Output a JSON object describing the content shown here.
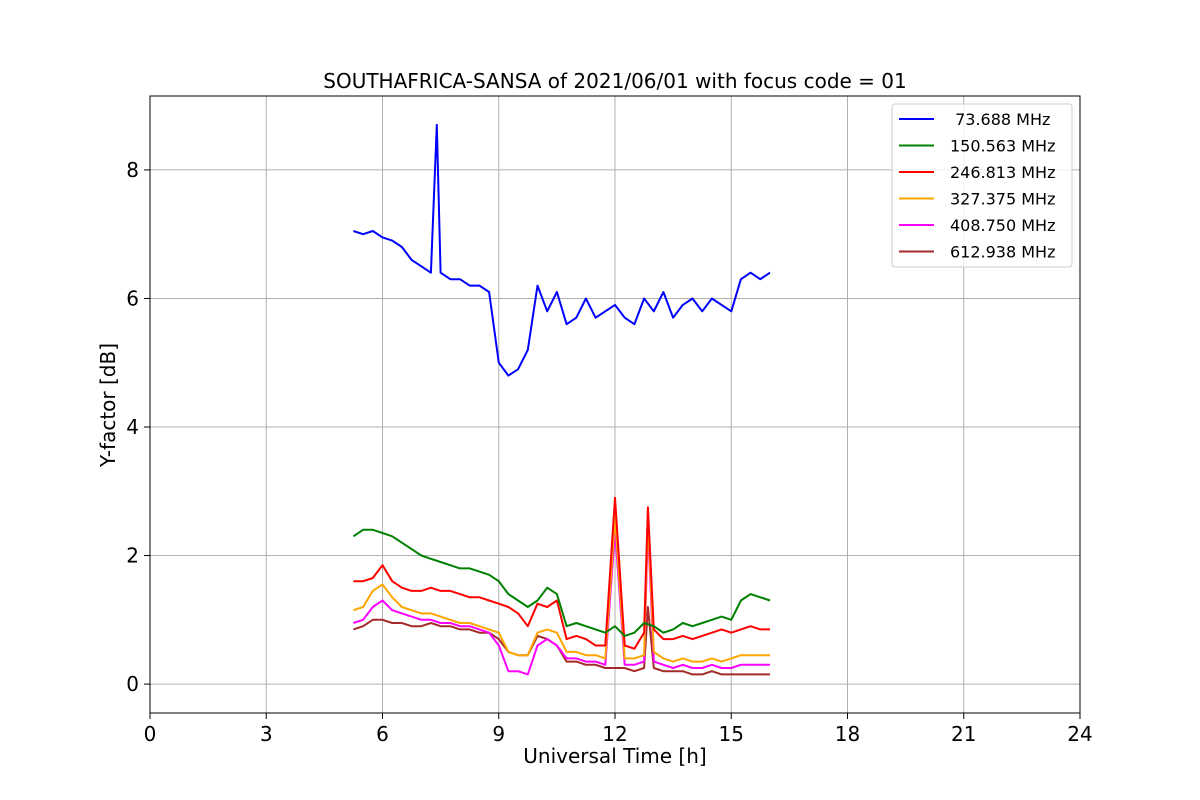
{
  "chart_data": {
    "type": "line",
    "title": "SOUTHAFRICA-SANSA of 2021/06/01 with focus code = 01",
    "xlabel": "Universal Time [h]",
    "ylabel": "Y-factor [dB]",
    "xlim": [
      0,
      24
    ],
    "ylim": [
      -0.45,
      9.15
    ],
    "xticks": [
      0,
      3,
      6,
      9,
      12,
      15,
      18,
      21,
      24
    ],
    "yticks": [
      0,
      2,
      4,
      6,
      8
    ],
    "grid": true,
    "legend_position": "top-right",
    "series": [
      {
        "name": " 73.688 MHz",
        "color": "#0000ff",
        "x": [
          5.25,
          5.5,
          5.75,
          6.0,
          6.25,
          6.5,
          6.75,
          7.0,
          7.25,
          7.4,
          7.5,
          7.75,
          8.0,
          8.25,
          8.5,
          8.75,
          9.0,
          9.25,
          9.5,
          9.75,
          10.0,
          10.25,
          10.5,
          10.75,
          11.0,
          11.25,
          11.5,
          11.75,
          12.0,
          12.25,
          12.5,
          12.75,
          13.0,
          13.25,
          13.5,
          13.75,
          14.0,
          14.25,
          14.5,
          14.75,
          15.0,
          15.25,
          15.5,
          15.75,
          16.0
        ],
        "y": [
          7.05,
          7.0,
          7.05,
          6.95,
          6.9,
          6.8,
          6.6,
          6.5,
          6.4,
          8.7,
          6.4,
          6.3,
          6.3,
          6.2,
          6.2,
          6.1,
          5.0,
          4.8,
          4.9,
          5.2,
          6.2,
          5.8,
          6.1,
          5.6,
          5.7,
          6.0,
          5.7,
          5.8,
          5.9,
          5.7,
          5.6,
          6.0,
          5.8,
          6.1,
          5.7,
          5.9,
          6.0,
          5.8,
          6.0,
          5.9,
          5.8,
          6.3,
          6.4,
          6.3,
          6.4
        ]
      },
      {
        "name": "150.563 MHz",
        "color": "#008000",
        "x": [
          5.25,
          5.5,
          5.75,
          6.0,
          6.25,
          6.5,
          6.75,
          7.0,
          7.25,
          7.5,
          7.75,
          8.0,
          8.25,
          8.5,
          8.75,
          9.0,
          9.25,
          9.5,
          9.75,
          10.0,
          10.25,
          10.5,
          10.75,
          11.0,
          11.25,
          11.5,
          11.75,
          12.0,
          12.25,
          12.5,
          12.75,
          13.0,
          13.25,
          13.5,
          13.75,
          14.0,
          14.25,
          14.5,
          14.75,
          15.0,
          15.25,
          15.5,
          15.75,
          16.0
        ],
        "y": [
          2.3,
          2.4,
          2.4,
          2.35,
          2.3,
          2.2,
          2.1,
          2.0,
          1.95,
          1.9,
          1.85,
          1.8,
          1.8,
          1.75,
          1.7,
          1.6,
          1.4,
          1.3,
          1.2,
          1.3,
          1.5,
          1.4,
          0.9,
          0.95,
          0.9,
          0.85,
          0.8,
          0.9,
          0.75,
          0.8,
          0.95,
          0.9,
          0.8,
          0.85,
          0.95,
          0.9,
          0.95,
          1.0,
          1.05,
          1.0,
          1.3,
          1.4,
          1.35,
          1.3
        ]
      },
      {
        "name": "246.813 MHz",
        "color": "#ff0000",
        "x": [
          5.25,
          5.5,
          5.75,
          6.0,
          6.25,
          6.5,
          6.75,
          7.0,
          7.25,
          7.5,
          7.75,
          8.0,
          8.25,
          8.5,
          8.75,
          9.0,
          9.25,
          9.5,
          9.75,
          10.0,
          10.25,
          10.5,
          10.75,
          11.0,
          11.25,
          11.5,
          11.75,
          12.0,
          12.25,
          12.5,
          12.75,
          12.85,
          13.0,
          13.25,
          13.5,
          13.75,
          14.0,
          14.25,
          14.5,
          14.75,
          15.0,
          15.25,
          15.5,
          15.75,
          16.0
        ],
        "y": [
          1.6,
          1.6,
          1.65,
          1.85,
          1.6,
          1.5,
          1.45,
          1.45,
          1.5,
          1.45,
          1.45,
          1.4,
          1.35,
          1.35,
          1.3,
          1.25,
          1.2,
          1.1,
          0.9,
          1.25,
          1.2,
          1.3,
          0.7,
          0.75,
          0.7,
          0.6,
          0.6,
          2.9,
          0.6,
          0.55,
          0.8,
          2.75,
          0.85,
          0.7,
          0.7,
          0.75,
          0.7,
          0.75,
          0.8,
          0.85,
          0.8,
          0.85,
          0.9,
          0.85,
          0.85
        ]
      },
      {
        "name": "327.375 MHz",
        "color": "#ffa500",
        "x": [
          5.25,
          5.5,
          5.75,
          6.0,
          6.25,
          6.5,
          6.75,
          7.0,
          7.25,
          7.5,
          7.75,
          8.0,
          8.25,
          8.5,
          8.75,
          9.0,
          9.25,
          9.5,
          9.75,
          10.0,
          10.25,
          10.5,
          10.75,
          11.0,
          11.25,
          11.5,
          11.75,
          12.0,
          12.25,
          12.5,
          12.75,
          12.85,
          13.0,
          13.25,
          13.5,
          13.75,
          14.0,
          14.25,
          14.5,
          14.75,
          15.0,
          15.25,
          15.5,
          15.75,
          16.0
        ],
        "y": [
          1.15,
          1.2,
          1.45,
          1.55,
          1.35,
          1.2,
          1.15,
          1.1,
          1.1,
          1.05,
          1.0,
          0.95,
          0.95,
          0.9,
          0.85,
          0.8,
          0.5,
          0.45,
          0.45,
          0.8,
          0.85,
          0.8,
          0.5,
          0.5,
          0.45,
          0.45,
          0.4,
          2.6,
          0.4,
          0.4,
          0.45,
          2.6,
          0.5,
          0.4,
          0.35,
          0.4,
          0.35,
          0.35,
          0.4,
          0.35,
          0.4,
          0.45,
          0.45,
          0.45,
          0.45
        ]
      },
      {
        "name": "408.750 MHz",
        "color": "#ff00ff",
        "x": [
          5.25,
          5.5,
          5.75,
          6.0,
          6.25,
          6.5,
          6.75,
          7.0,
          7.25,
          7.5,
          7.75,
          8.0,
          8.25,
          8.5,
          8.75,
          9.0,
          9.25,
          9.5,
          9.75,
          10.0,
          10.25,
          10.5,
          10.75,
          11.0,
          11.25,
          11.5,
          11.75,
          12.0,
          12.25,
          12.5,
          12.75,
          12.85,
          13.0,
          13.25,
          13.5,
          13.75,
          14.0,
          14.25,
          14.5,
          14.75,
          15.0,
          15.25,
          15.5,
          15.75,
          16.0
        ],
        "y": [
          0.95,
          1.0,
          1.2,
          1.3,
          1.15,
          1.1,
          1.05,
          1.0,
          1.0,
          0.95,
          0.95,
          0.9,
          0.9,
          0.85,
          0.8,
          0.6,
          0.2,
          0.2,
          0.15,
          0.6,
          0.7,
          0.6,
          0.4,
          0.4,
          0.35,
          0.35,
          0.3,
          2.4,
          0.3,
          0.3,
          0.35,
          2.45,
          0.35,
          0.3,
          0.25,
          0.3,
          0.25,
          0.25,
          0.3,
          0.25,
          0.25,
          0.3,
          0.3,
          0.3,
          0.3
        ]
      },
      {
        "name": "612.938 MHz",
        "color": "#a52a2a",
        "x": [
          5.25,
          5.5,
          5.75,
          6.0,
          6.25,
          6.5,
          6.75,
          7.0,
          7.25,
          7.5,
          7.75,
          8.0,
          8.25,
          8.5,
          8.75,
          9.0,
          9.25,
          9.5,
          9.75,
          10.0,
          10.25,
          10.5,
          10.75,
          11.0,
          11.25,
          11.5,
          11.75,
          12.0,
          12.25,
          12.5,
          12.75,
          12.85,
          13.0,
          13.25,
          13.5,
          13.75,
          14.0,
          14.25,
          14.5,
          14.75,
          15.0,
          15.25,
          15.5,
          15.75,
          16.0
        ],
        "y": [
          0.85,
          0.9,
          1.0,
          1.0,
          0.95,
          0.95,
          0.9,
          0.9,
          0.95,
          0.9,
          0.9,
          0.85,
          0.85,
          0.8,
          0.8,
          0.7,
          0.5,
          0.45,
          0.45,
          0.75,
          0.7,
          0.6,
          0.35,
          0.35,
          0.3,
          0.3,
          0.25,
          0.25,
          0.25,
          0.2,
          0.25,
          1.2,
          0.25,
          0.2,
          0.2,
          0.2,
          0.15,
          0.15,
          0.2,
          0.15,
          0.15,
          0.15,
          0.15,
          0.15,
          0.15
        ]
      }
    ]
  }
}
